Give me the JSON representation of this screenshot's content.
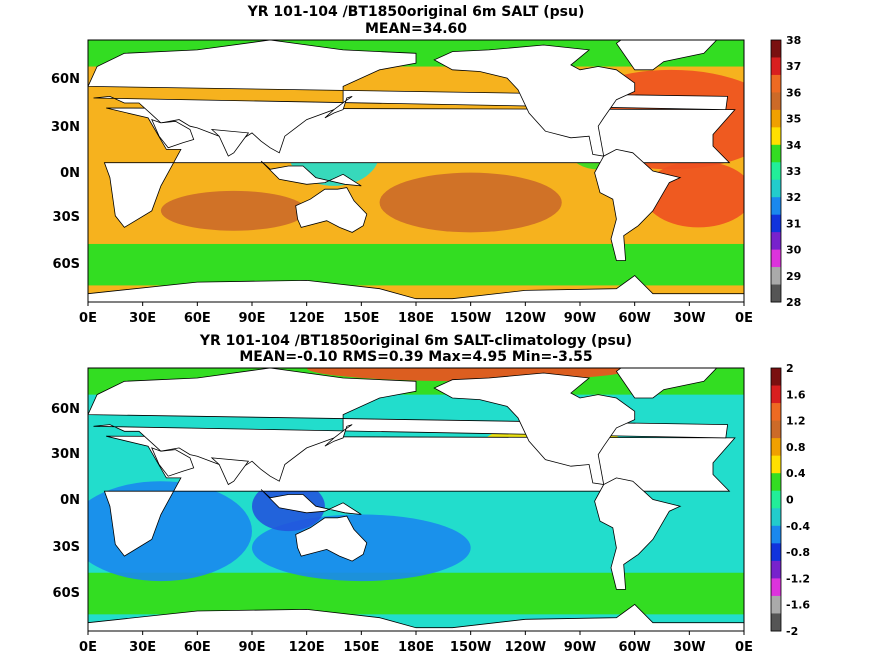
{
  "panels": [
    {
      "title": "YR 101-104 /BT1850original 6m SALT (psu)",
      "subtitle": "MEAN=34.60",
      "colorbar": {
        "labels": [
          "38",
          "37",
          "36",
          "35",
          "34",
          "33",
          "32",
          "31",
          "30",
          "29",
          "28"
        ],
        "colors": [
          "#7a1010",
          "#d81f1f",
          "#ee6a22",
          "#cc6a28",
          "#f0a000",
          "#ffe000",
          "#33dd22",
          "#22ee99",
          "#22cccc",
          "#1a88ee",
          "#1133dd",
          "#7722cc",
          "#dd33dd",
          "#aaaaaa",
          "#555555"
        ]
      },
      "ocean_colors": {
        "base": "#f6b21e",
        "band": "#33dd22",
        "warm": "#ee5020",
        "rich": "#cc6a28",
        "fresh": "#22ddcc",
        "cool": "#1a88ee"
      }
    },
    {
      "title": "YR 101-104 /BT1850original 6m SALT-climatology (psu)",
      "subtitle": "MEAN=-0.10   RMS=0.39   Max=4.95   Min=-3.55",
      "colorbar": {
        "labels": [
          "2",
          "1.6",
          "1.2",
          "0.8",
          "0.4",
          "0",
          "-0.4",
          "-0.8",
          "-1.2",
          "-1.6",
          "-2"
        ],
        "colors": [
          "#7a1010",
          "#d81f1f",
          "#ee6a22",
          "#cc6a28",
          "#f0a000",
          "#ffe000",
          "#33dd22",
          "#22ee99",
          "#22cccc",
          "#1a88ee",
          "#1133dd",
          "#7722cc",
          "#dd33dd",
          "#aaaaaa",
          "#555555"
        ]
      },
      "ocean_colors": {
        "base": "#22ddcc",
        "band": "#33dd22",
        "warm": "#ee5020",
        "rich": "#ffe000",
        "fresh": "#1a88ee",
        "cool": "#2255dd"
      }
    }
  ],
  "lon_labels": [
    "0E",
    "30E",
    "60E",
    "90E",
    "120E",
    "150E",
    "180E",
    "150W",
    "120W",
    "90W",
    "60W",
    "30W",
    "0E"
  ],
  "lat_labels": [
    "60N",
    "30N",
    "0N",
    "30S",
    "60S"
  ]
}
